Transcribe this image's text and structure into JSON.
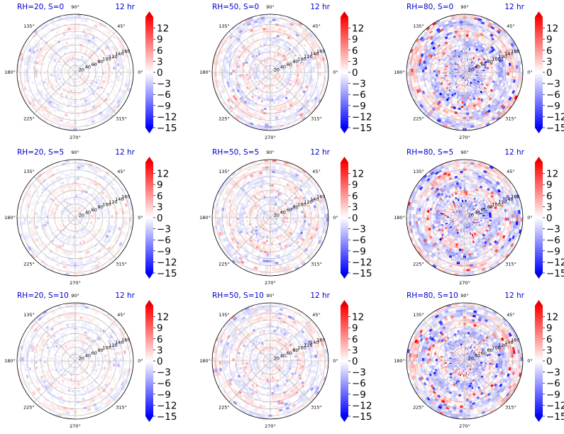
{
  "figure": {
    "background": "#ffffff",
    "colormap": "bwr",
    "colors": {
      "low": "#0000ff",
      "mid": "#ffffff",
      "high": "#ff0000",
      "title": "#0000cc",
      "grid": "#b0b0b0"
    }
  },
  "chart_data": [
    {
      "type": "heatmap",
      "projection": "polar",
      "title_left": "RH=20, S=0",
      "title_right": "12 hr",
      "rh": 20,
      "s": 0,
      "intensity": 0.28
    },
    {
      "type": "heatmap",
      "projection": "polar",
      "title_left": "RH=50, S=0",
      "title_right": "12 hr",
      "rh": 50,
      "s": 0,
      "intensity": 0.45
    },
    {
      "type": "heatmap",
      "projection": "polar",
      "title_left": "RH=80, S=0",
      "title_right": "12 hr",
      "rh": 80,
      "s": 0,
      "intensity": 0.95
    },
    {
      "type": "heatmap",
      "projection": "polar",
      "title_left": "RH=20, S=5",
      "title_right": "12 hr",
      "rh": 20,
      "s": 5,
      "intensity": 0.28
    },
    {
      "type": "heatmap",
      "projection": "polar",
      "title_left": "RH=50, S=5",
      "title_right": "12 hr",
      "rh": 50,
      "s": 5,
      "intensity": 0.45
    },
    {
      "type": "heatmap",
      "projection": "polar",
      "title_left": "RH=80, S=5",
      "title_right": "12 hr",
      "rh": 80,
      "s": 5,
      "intensity": 0.95
    },
    {
      "type": "heatmap",
      "projection": "polar",
      "title_left": "RH=20, S=10",
      "title_right": "12 hr",
      "rh": 20,
      "s": 10,
      "intensity": 0.28
    },
    {
      "type": "heatmap",
      "projection": "polar",
      "title_left": "RH=50, S=10",
      "title_right": "12 hr",
      "rh": 50,
      "s": 10,
      "intensity": 0.45
    },
    {
      "type": "heatmap",
      "projection": "polar",
      "title_left": "RH=80, S=10",
      "title_right": "12 hr",
      "rh": 80,
      "s": 10,
      "intensity": 0.95
    }
  ],
  "polar_axes": {
    "angle_labels": [
      "0°",
      "45°",
      "90°",
      "135°",
      "180°",
      "225°",
      "270°",
      "315°"
    ],
    "radial_ticks": [
      20,
      40,
      60,
      80,
      100,
      120,
      140,
      160
    ],
    "radial_max": 170,
    "grid": true
  },
  "colorbar": {
    "ticks": [
      12,
      9,
      6,
      3,
      0,
      -3,
      -6,
      -9,
      -12,
      -15
    ],
    "tick_labels": [
      "12",
      "9",
      "6",
      "3",
      "0",
      "−3",
      "−6",
      "−9",
      "−12",
      "−15"
    ],
    "vmin": -15,
    "vmax": 15,
    "extend": "both"
  }
}
